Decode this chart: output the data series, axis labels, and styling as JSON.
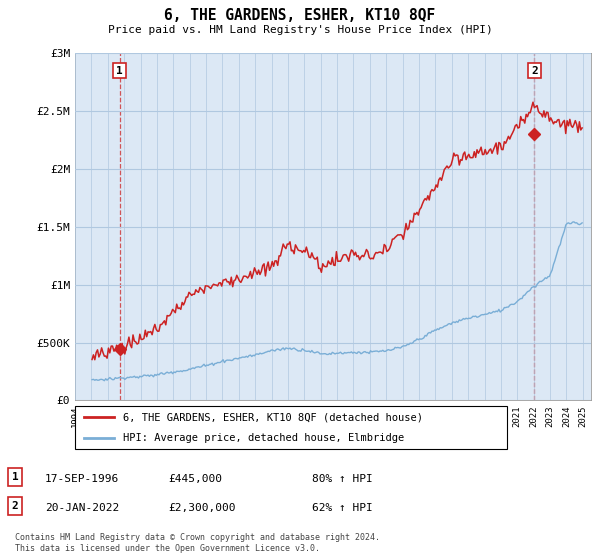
{
  "title": "6, THE GARDENS, ESHER, KT10 8QF",
  "subtitle": "Price paid vs. HM Land Registry's House Price Index (HPI)",
  "ylabel_ticks": [
    "£0",
    "£500K",
    "£1M",
    "£1.5M",
    "£2M",
    "£2.5M",
    "£3M"
  ],
  "ytick_vals": [
    0,
    500000,
    1000000,
    1500000,
    2000000,
    2500000,
    3000000
  ],
  "ylim": [
    0,
    3000000
  ],
  "xlim_start": 1994.5,
  "xlim_end": 2025.5,
  "xticks": [
    1994,
    1995,
    1996,
    1997,
    1998,
    1999,
    2000,
    2001,
    2002,
    2003,
    2004,
    2005,
    2006,
    2007,
    2008,
    2009,
    2010,
    2011,
    2012,
    2013,
    2014,
    2015,
    2016,
    2017,
    2018,
    2019,
    2020,
    2021,
    2022,
    2023,
    2024,
    2025
  ],
  "hpi_color": "#7aaed6",
  "price_color": "#cc2222",
  "bg_color": "#dce8f5",
  "hatch_color": "#c0d4e8",
  "grid_color": "#b0c8e0",
  "sale1_x": 1996.72,
  "sale1_y": 445000,
  "sale2_x": 2022.05,
  "sale2_y": 2300000,
  "vline1_x": 1996.72,
  "vline2_x": 2022.05,
  "legend_line1": "6, THE GARDENS, ESHER, KT10 8QF (detached house)",
  "legend_line2": "HPI: Average price, detached house, Elmbridge",
  "table_row1_date": "17-SEP-1996",
  "table_row1_price": "£445,000",
  "table_row1_hpi": "80% ↑ HPI",
  "table_row2_date": "20-JAN-2022",
  "table_row2_price": "£2,300,000",
  "table_row2_hpi": "62% ↑ HPI",
  "footer": "Contains HM Land Registry data © Crown copyright and database right 2024.\nThis data is licensed under the Open Government Licence v3.0."
}
